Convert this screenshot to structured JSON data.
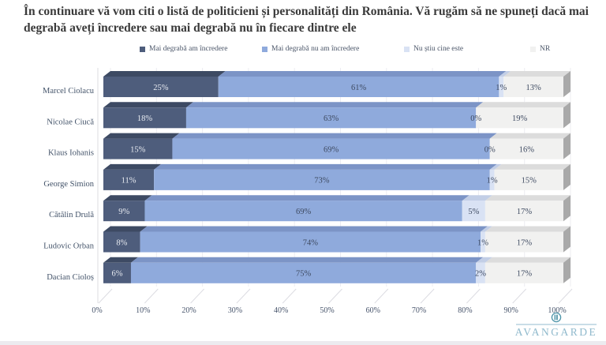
{
  "title": "În continuare vă vom citi o listă de politicieni și personalități din România. Vă rugăm să ne spuneți dacă mai degrabă aveți încredere sau mai degrabă nu în fiecare dintre ele",
  "logo": {
    "name": "AVANGARDE"
  },
  "chart_data": {
    "type": "bar",
    "subtype": "3d-stacked-horizontal",
    "title": "",
    "categories": [
      "Marcel Ciolacu",
      "Nicolae Ciucă",
      "Klaus Iohanis",
      "George Simion",
      "Cătălin Drulă",
      "Ludovic Orban",
      "Dacian Cioloș"
    ],
    "series": [
      {
        "name": "Mai degrabă am încredere",
        "color": "#4e5d7c",
        "top_color": "#3d4a63",
        "values": [
          25,
          18,
          15,
          11,
          9,
          8,
          6
        ]
      },
      {
        "name": "Mai degrabă nu am încredere",
        "color": "#8faadc",
        "top_color": "#7c94c6",
        "values": [
          61,
          63,
          69,
          73,
          69,
          74,
          75
        ]
      },
      {
        "name": "Nu știu cine este",
        "color": "#d9e2f4",
        "top_color": "#c2cee6",
        "values": [
          1,
          0,
          0,
          1,
          5,
          1,
          2
        ]
      },
      {
        "name": "NR",
        "color": "#f1f1f0",
        "top_color": "#dcdcdc",
        "values": [
          13,
          19,
          16,
          15,
          17,
          17,
          17
        ]
      }
    ],
    "x_ticks": [
      "0%",
      "10%",
      "20%",
      "30%",
      "40%",
      "50%",
      "60%",
      "70%",
      "80%",
      "90%",
      "100%"
    ],
    "xlim": [
      0,
      100
    ],
    "value_suffix": "%",
    "grid": true,
    "legend_position": "top",
    "end_face_color": "#a9a9a9",
    "gridline_color": "#ececf2",
    "floor_line_color": "#dcdce2",
    "label_color_on_dark": "#e9ecf2",
    "label_color": "#3e4a61"
  }
}
